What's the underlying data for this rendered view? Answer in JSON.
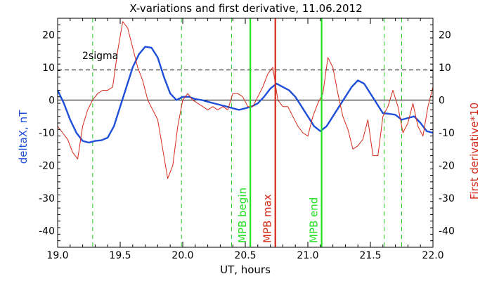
{
  "chart_data": {
    "type": "line",
    "title": "X-variations and first derivative, 11.06.2012",
    "xlabel": "UT, hours",
    "ylabel_left": "deltaX, nT",
    "ylabel_right": "First derivative*10",
    "xlim": [
      19.0,
      22.0
    ],
    "ylim": [
      -45,
      25
    ],
    "x_ticks": [
      "19.0",
      "19.5",
      "20.0",
      "20.5",
      "21.0",
      "21.5",
      "22.0"
    ],
    "x_tick_values": [
      19.0,
      19.5,
      20.0,
      20.5,
      21.0,
      21.5,
      22.0
    ],
    "y_ticks": [
      "20",
      "10",
      "0",
      "-10",
      "-20",
      "-30",
      "-40"
    ],
    "y_tick_values": [
      20,
      10,
      0,
      -10,
      -20,
      -30,
      -40
    ],
    "sigma_label": "2sigma",
    "sigma_level": 9.2,
    "zero_level": 0,
    "colors": {
      "deltaX": "#1f4fd8",
      "derivative": "#d42a1a",
      "mpb_boundary": "#22e022",
      "mpb_max": "#d42a1a",
      "dashed_markers": "#22cc22",
      "axis": "#000000"
    },
    "dashed_markers_x": [
      19.28,
      19.99,
      20.39,
      21.61,
      21.75
    ],
    "markers": [
      {
        "label": "MPB begin",
        "x": 20.54,
        "color_key": "mpb_boundary"
      },
      {
        "label": "MPB max",
        "x": 20.74,
        "color_key": "mpb_max"
      },
      {
        "label": "MPB end",
        "x": 21.11,
        "color_key": "mpb_boundary"
      }
    ],
    "series": [
      {
        "key": "deltaX",
        "x": [
          19.0,
          19.05,
          19.1,
          19.15,
          19.2,
          19.25,
          19.3,
          19.35,
          19.4,
          19.45,
          19.5,
          19.55,
          19.6,
          19.65,
          19.7,
          19.75,
          19.8,
          19.85,
          19.9,
          19.95,
          20.0,
          20.05,
          20.1,
          20.15,
          20.2,
          20.25,
          20.3,
          20.35,
          20.4,
          20.45,
          20.5,
          20.55,
          20.6,
          20.65,
          20.7,
          20.75,
          20.8,
          20.85,
          20.9,
          20.95,
          21.0,
          21.05,
          21.1,
          21.15,
          21.2,
          21.25,
          21.3,
          21.35,
          21.4,
          21.45,
          21.5,
          21.55,
          21.6,
          21.65,
          21.7,
          21.75,
          21.8,
          21.85,
          21.9,
          21.95,
          22.0
        ],
        "values": [
          3,
          -1,
          -6,
          -10,
          -12.5,
          -13,
          -12.5,
          -12.3,
          -11.5,
          -8,
          -2,
          4,
          10,
          14,
          16.3,
          16,
          13,
          7,
          2,
          0,
          1,
          1,
          0.3,
          0,
          -0.5,
          -1,
          -1.5,
          -2,
          -2.5,
          -3,
          -2.5,
          -2,
          -1,
          1,
          3.5,
          5,
          4,
          3,
          1,
          -2,
          -5,
          -8,
          -9.5,
          -8,
          -5,
          -2,
          1,
          4,
          6,
          5,
          2,
          -1,
          -4,
          -4.2,
          -4.5,
          -6,
          -5.5,
          -5,
          -7,
          -9.5,
          -10
        ]
      },
      {
        "key": "derivative",
        "x": [
          19.0,
          19.04,
          19.08,
          19.12,
          19.16,
          19.2,
          19.24,
          19.28,
          19.32,
          19.36,
          19.4,
          19.44,
          19.48,
          19.52,
          19.56,
          19.6,
          19.64,
          19.68,
          19.72,
          19.76,
          19.8,
          19.84,
          19.88,
          19.92,
          19.96,
          20.0,
          20.04,
          20.08,
          20.12,
          20.16,
          20.2,
          20.24,
          20.28,
          20.32,
          20.36,
          20.4,
          20.44,
          20.48,
          20.52,
          20.56,
          20.6,
          20.64,
          20.68,
          20.72,
          20.76,
          20.8,
          20.84,
          20.88,
          20.92,
          20.96,
          21.0,
          21.04,
          21.08,
          21.12,
          21.16,
          21.2,
          21.24,
          21.28,
          21.32,
          21.36,
          21.4,
          21.44,
          21.48,
          21.52,
          21.56,
          21.6,
          21.64,
          21.68,
          21.72,
          21.76,
          21.8,
          21.84,
          21.88,
          21.92,
          21.96,
          22.0
        ],
        "values": [
          -8,
          -10,
          -12,
          -16,
          -18,
          -8,
          -3,
          0,
          2,
          3,
          3,
          4,
          15,
          24,
          22,
          16,
          10,
          6,
          0,
          -3,
          -6,
          -15,
          -24,
          -20,
          -8,
          0,
          2,
          0,
          -1,
          -2,
          -3,
          -2,
          -3,
          -2,
          -3,
          2,
          2,
          1,
          -2,
          -2,
          1,
          4,
          8,
          10,
          0,
          -2,
          -2,
          -5,
          -8,
          -10,
          -11,
          -5,
          -1,
          2,
          13,
          10,
          2,
          -5,
          -9,
          -15,
          -14,
          -12,
          -6,
          -17,
          -17,
          -5,
          -2,
          3,
          -2,
          -10,
          -7,
          -1,
          -8,
          -11,
          -2,
          4
        ]
      }
    ]
  }
}
